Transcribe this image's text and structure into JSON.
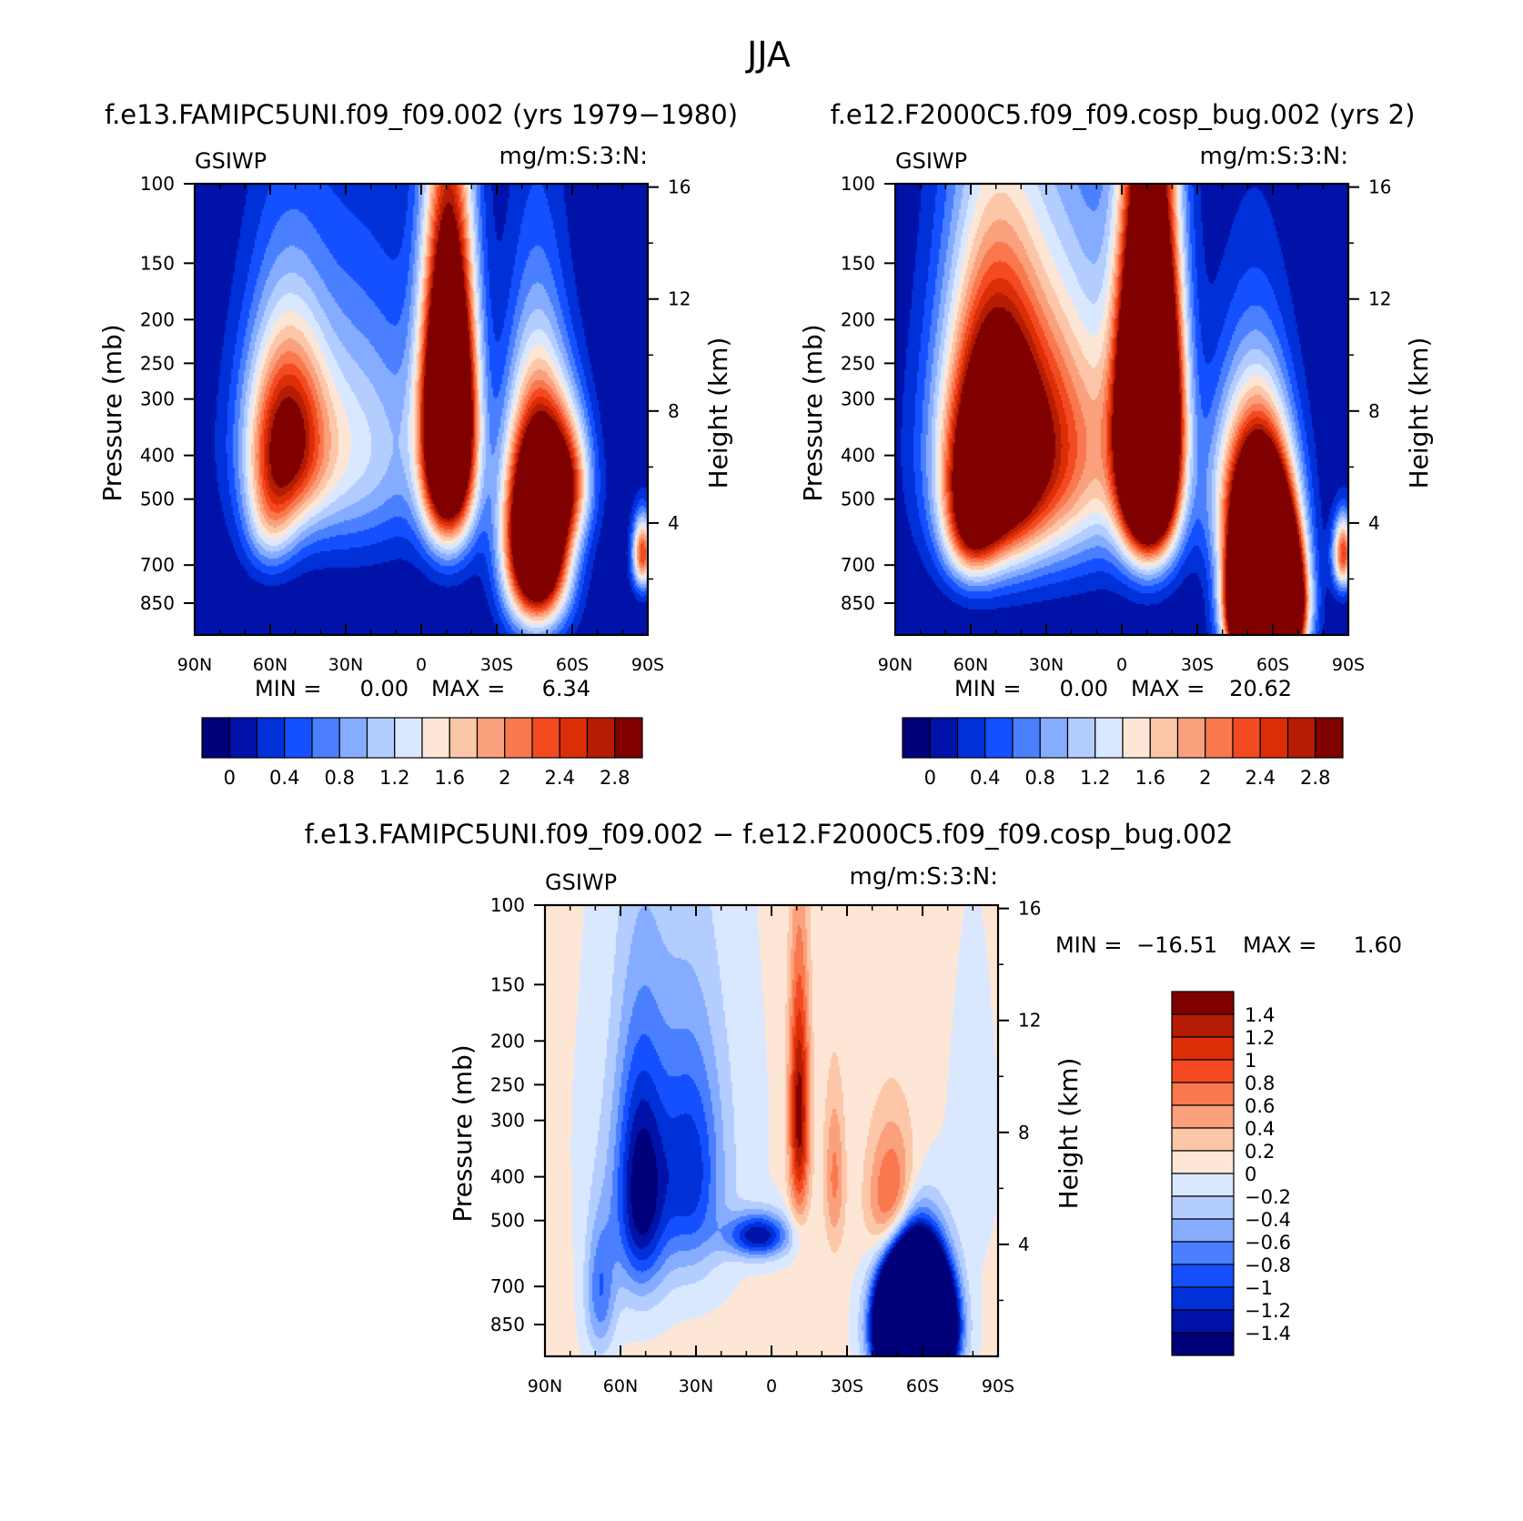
{
  "figure_title": "JJA",
  "colors": {
    "seq": [
      "#00007a",
      "#0012a8",
      "#0030d8",
      "#1450ff",
      "#4a80ff",
      "#86acff",
      "#b4cdff",
      "#dae8ff",
      "#fde6d6",
      "#fcc6a8",
      "#fba07c",
      "#f9784e",
      "#f44a22",
      "#dc2e06",
      "#b41c04",
      "#800000"
    ],
    "div": [
      "#00007a",
      "#0012a8",
      "#0030d8",
      "#1450ff",
      "#4a80ff",
      "#86acff",
      "#b4cdff",
      "#dae8ff",
      "#fde6d6",
      "#fcc6a8",
      "#fba07c",
      "#f9784e",
      "#f44a22",
      "#dc2e06",
      "#b41c04",
      "#800000"
    ]
  },
  "chart_data": [
    {
      "type": "contour",
      "title": "f.e13.FAMIPC5UNI.f09_f09.002 (yrs 1979−1980)",
      "variable": "GSIWP",
      "units": "mg/m:S:3:N:",
      "ylabel": "Pressure (mb)",
      "y2label": "Height (km)",
      "xticks": [
        "90N",
        "60N",
        "30N",
        "0",
        "30S",
        "60S",
        "90S"
      ],
      "yticks": [
        "100",
        "150",
        "200",
        "250",
        "300",
        "400",
        "500",
        "700",
        "850"
      ],
      "y2ticks": [
        "16",
        "12",
        "8",
        "4"
      ],
      "xlim": [
        90,
        -90
      ],
      "ylim": [
        100,
        1000
      ],
      "min_label": "MIN =",
      "min_value": "0.00",
      "max_label": "MAX =",
      "max_value": "6.34",
      "colorbar_ticks": [
        "0",
        "0.4",
        "0.8",
        "1.2",
        "1.6",
        "2",
        "2.4",
        "2.8"
      ],
      "levels": [
        0,
        0.2,
        0.4,
        0.6,
        0.8,
        1.0,
        1.2,
        1.4,
        1.6,
        1.8,
        2.0,
        2.2,
        2.4,
        2.6,
        2.8
      ],
      "blobs": [
        {
          "lat": -11,
          "p": 330,
          "wlat": 10,
          "wp": 240,
          "amp": 6.3
        },
        {
          "lat": 54,
          "p": 360,
          "wlat": 15,
          "wp": 180,
          "amp": 2.3
        },
        {
          "lat": 30,
          "p": 380,
          "wlat": 34,
          "wp": 240,
          "amp": 1.3
        },
        {
          "lat": -46,
          "p": 590,
          "wlat": 12,
          "wp": 300,
          "amp": 5.8
        },
        {
          "lat": -58,
          "p": 450,
          "wlat": 10,
          "wp": 150,
          "amp": 1.8
        },
        {
          "lat": 60,
          "p": 560,
          "wlat": 10,
          "wp": 160,
          "amp": 1.0
        },
        {
          "lat": -88,
          "p": 660,
          "wlat": 4,
          "wp": 120,
          "amp": 2.4
        }
      ]
    },
    {
      "type": "contour",
      "title": "f.e12.F2000C5.f09_f09.cosp_bug.002 (yrs 2)",
      "variable": "GSIWP",
      "units": "mg/m:S:3:N:",
      "ylabel": "Pressure (mb)",
      "y2label": "Height (km)",
      "xticks": [
        "90N",
        "60N",
        "30N",
        "0",
        "30S",
        "60S",
        "90S"
      ],
      "yticks": [
        "100",
        "150",
        "200",
        "250",
        "300",
        "400",
        "500",
        "700",
        "850"
      ],
      "y2ticks": [
        "16",
        "12",
        "8",
        "4"
      ],
      "xlim": [
        90,
        -90
      ],
      "ylim": [
        100,
        1000
      ],
      "min_label": "MIN =",
      "min_value": "0.00",
      "max_label": "MAX =",
      "max_value": "20.62",
      "colorbar_ticks": [
        "0",
        "0.4",
        "0.8",
        "1.2",
        "1.6",
        "2",
        "2.4",
        "2.8"
      ],
      "levels": [
        0,
        0.2,
        0.4,
        0.6,
        0.8,
        1.0,
        1.2,
        1.4,
        1.6,
        1.8,
        2.0,
        2.2,
        2.4,
        2.6,
        2.8
      ],
      "blobs": [
        {
          "lat": -11,
          "p": 340,
          "wlat": 11,
          "wp": 260,
          "amp": 9.0
        },
        {
          "lat": 52,
          "p": 390,
          "wlat": 18,
          "wp": 260,
          "amp": 3.2
        },
        {
          "lat": 30,
          "p": 380,
          "wlat": 34,
          "wp": 280,
          "amp": 2.4
        },
        {
          "lat": -57,
          "p": 840,
          "wlat": 11,
          "wp": 280,
          "amp": 20.0
        },
        {
          "lat": -52,
          "p": 480,
          "wlat": 15,
          "wp": 230,
          "amp": 2.7
        },
        {
          "lat": 60,
          "p": 560,
          "wlat": 10,
          "wp": 180,
          "amp": 1.6
        },
        {
          "lat": -88,
          "p": 660,
          "wlat": 4,
          "wp": 120,
          "amp": 2.4
        }
      ]
    },
    {
      "type": "contour",
      "title": "f.e13.FAMIPC5UNI.f09_f09.002 − f.e12.F2000C5.f09_f09.cosp_bug.002",
      "variable": "GSIWP",
      "units": "mg/m:S:3:N:",
      "ylabel": "Pressure (mb)",
      "y2label": "Height (km)",
      "xticks": [
        "90N",
        "60N",
        "30N",
        "0",
        "30S",
        "60S",
        "90S"
      ],
      "yticks": [
        "100",
        "150",
        "200",
        "250",
        "300",
        "400",
        "500",
        "700",
        "850"
      ],
      "y2ticks": [
        "16",
        "12",
        "8",
        "4"
      ],
      "xlim": [
        90,
        -90
      ],
      "ylim": [
        100,
        1000
      ],
      "min_label": "MIN =",
      "min_value": "−16.51",
      "max_label": "MAX =",
      "max_value": "1.60",
      "colorbar_ticks": [
        "1.4",
        "1.2",
        "1",
        "0.8",
        "0.6",
        "0.4",
        "0.2",
        "0",
        "−0.2",
        "−0.4",
        "−0.6",
        "−0.8",
        "−1",
        "−1.2",
        "−1.4"
      ],
      "levels": [
        -1.4,
        -1.2,
        -1.0,
        -0.8,
        -0.6,
        -0.4,
        -0.2,
        0,
        0.2,
        0.4,
        0.6,
        0.8,
        1.0,
        1.2,
        1.4
      ],
      "baseline": 0.05,
      "blobs": [
        {
          "lat": -11,
          "p": 290,
          "wlat": 4,
          "wp": 180,
          "amp": 1.5
        },
        {
          "lat": -25,
          "p": 400,
          "wlat": 4,
          "wp": 160,
          "amp": 0.6
        },
        {
          "lat": 52,
          "p": 440,
          "wlat": 10,
          "wp": 260,
          "amp": -1.4
        },
        {
          "lat": 32,
          "p": 400,
          "wlat": 12,
          "wp": 220,
          "amp": -0.9
        },
        {
          "lat": 5,
          "p": 540,
          "wlat": 12,
          "wp": 60,
          "amp": -1.4
        },
        {
          "lat": 40,
          "p": 320,
          "wlat": 28,
          "wp": 320,
          "amp": -0.35
        },
        {
          "lat": -48,
          "p": 460,
          "wlat": 9,
          "wp": 160,
          "amp": 1.0
        },
        {
          "lat": -57,
          "p": 860,
          "wlat": 11,
          "wp": 230,
          "amp": -16.5
        },
        {
          "lat": 68,
          "p": 720,
          "wlat": 6,
          "wp": 250,
          "amp": -0.8
        },
        {
          "lat": -80,
          "p": 350,
          "wlat": 10,
          "wp": 250,
          "amp": -0.15
        }
      ]
    }
  ]
}
